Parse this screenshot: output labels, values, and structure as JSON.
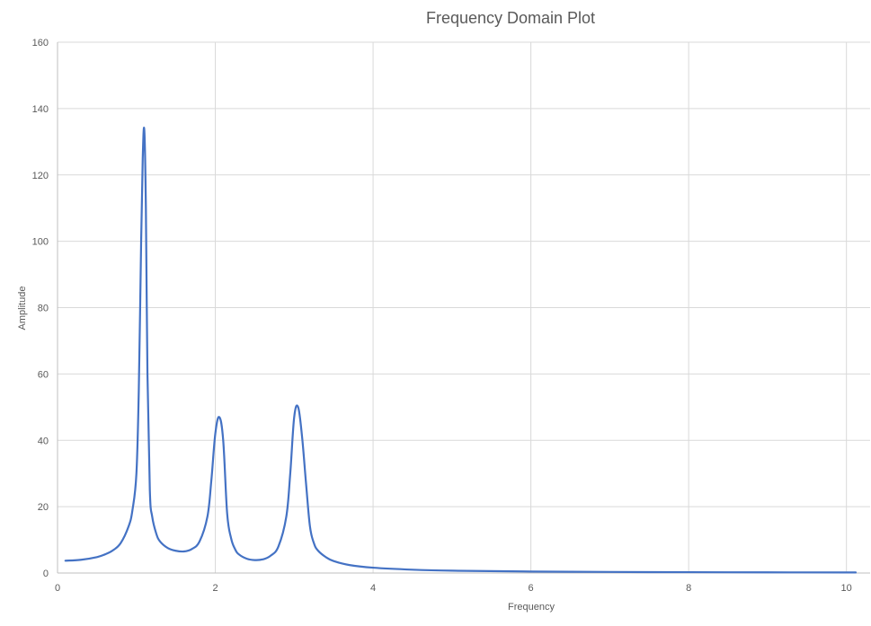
{
  "chart_data": {
    "type": "line",
    "title": "Frequency Domain Plot",
    "xlabel": "Frequency",
    "ylabel": "Amplitude",
    "xlim": [
      0,
      10.3
    ],
    "ylim": [
      0,
      160
    ],
    "xticks": [
      0,
      2,
      4,
      6,
      8,
      10
    ],
    "yticks": [
      0,
      20,
      40,
      60,
      80,
      100,
      120,
      140,
      160
    ],
    "grid": true,
    "line_color": "#4472C4",
    "series": [
      {
        "x": [
          0.1,
          0.3,
          0.5,
          0.6,
          0.7,
          0.8,
          0.9,
          0.95,
          1.0,
          1.03,
          1.06,
          1.08,
          1.1,
          1.12,
          1.14,
          1.17,
          1.2,
          1.25,
          1.3,
          1.4,
          1.5,
          1.6,
          1.7,
          1.8,
          1.9,
          1.95,
          2.0,
          2.05,
          2.1,
          2.15,
          2.2,
          2.25,
          2.3,
          2.4,
          2.5,
          2.6,
          2.7,
          2.8,
          2.9,
          2.95,
          3.0,
          3.05,
          3.1,
          3.15,
          3.2,
          3.25,
          3.3,
          3.4,
          3.5,
          3.7,
          4.0,
          4.5,
          5.0,
          6.0,
          7.0,
          8.0,
          9.0,
          10.0,
          10.1
        ],
        "y": [
          3.7,
          4.0,
          4.8,
          5.6,
          6.8,
          9.0,
          14.0,
          19.0,
          30.0,
          55.0,
          100.0,
          125.0,
          133.5,
          110.0,
          60.0,
          25.0,
          17.0,
          12.0,
          9.5,
          7.5,
          6.7,
          6.5,
          7.2,
          9.5,
          17.0,
          28.0,
          42.0,
          47.0,
          40.0,
          18.0,
          10.5,
          7.2,
          5.6,
          4.3,
          3.9,
          4.1,
          5.2,
          8.0,
          17.0,
          30.0,
          47.0,
          50.0,
          41.0,
          27.0,
          14.0,
          9.0,
          6.8,
          4.8,
          3.6,
          2.4,
          1.6,
          1.0,
          0.7,
          0.45,
          0.32,
          0.25,
          0.2,
          0.18,
          0.17
        ]
      }
    ]
  }
}
